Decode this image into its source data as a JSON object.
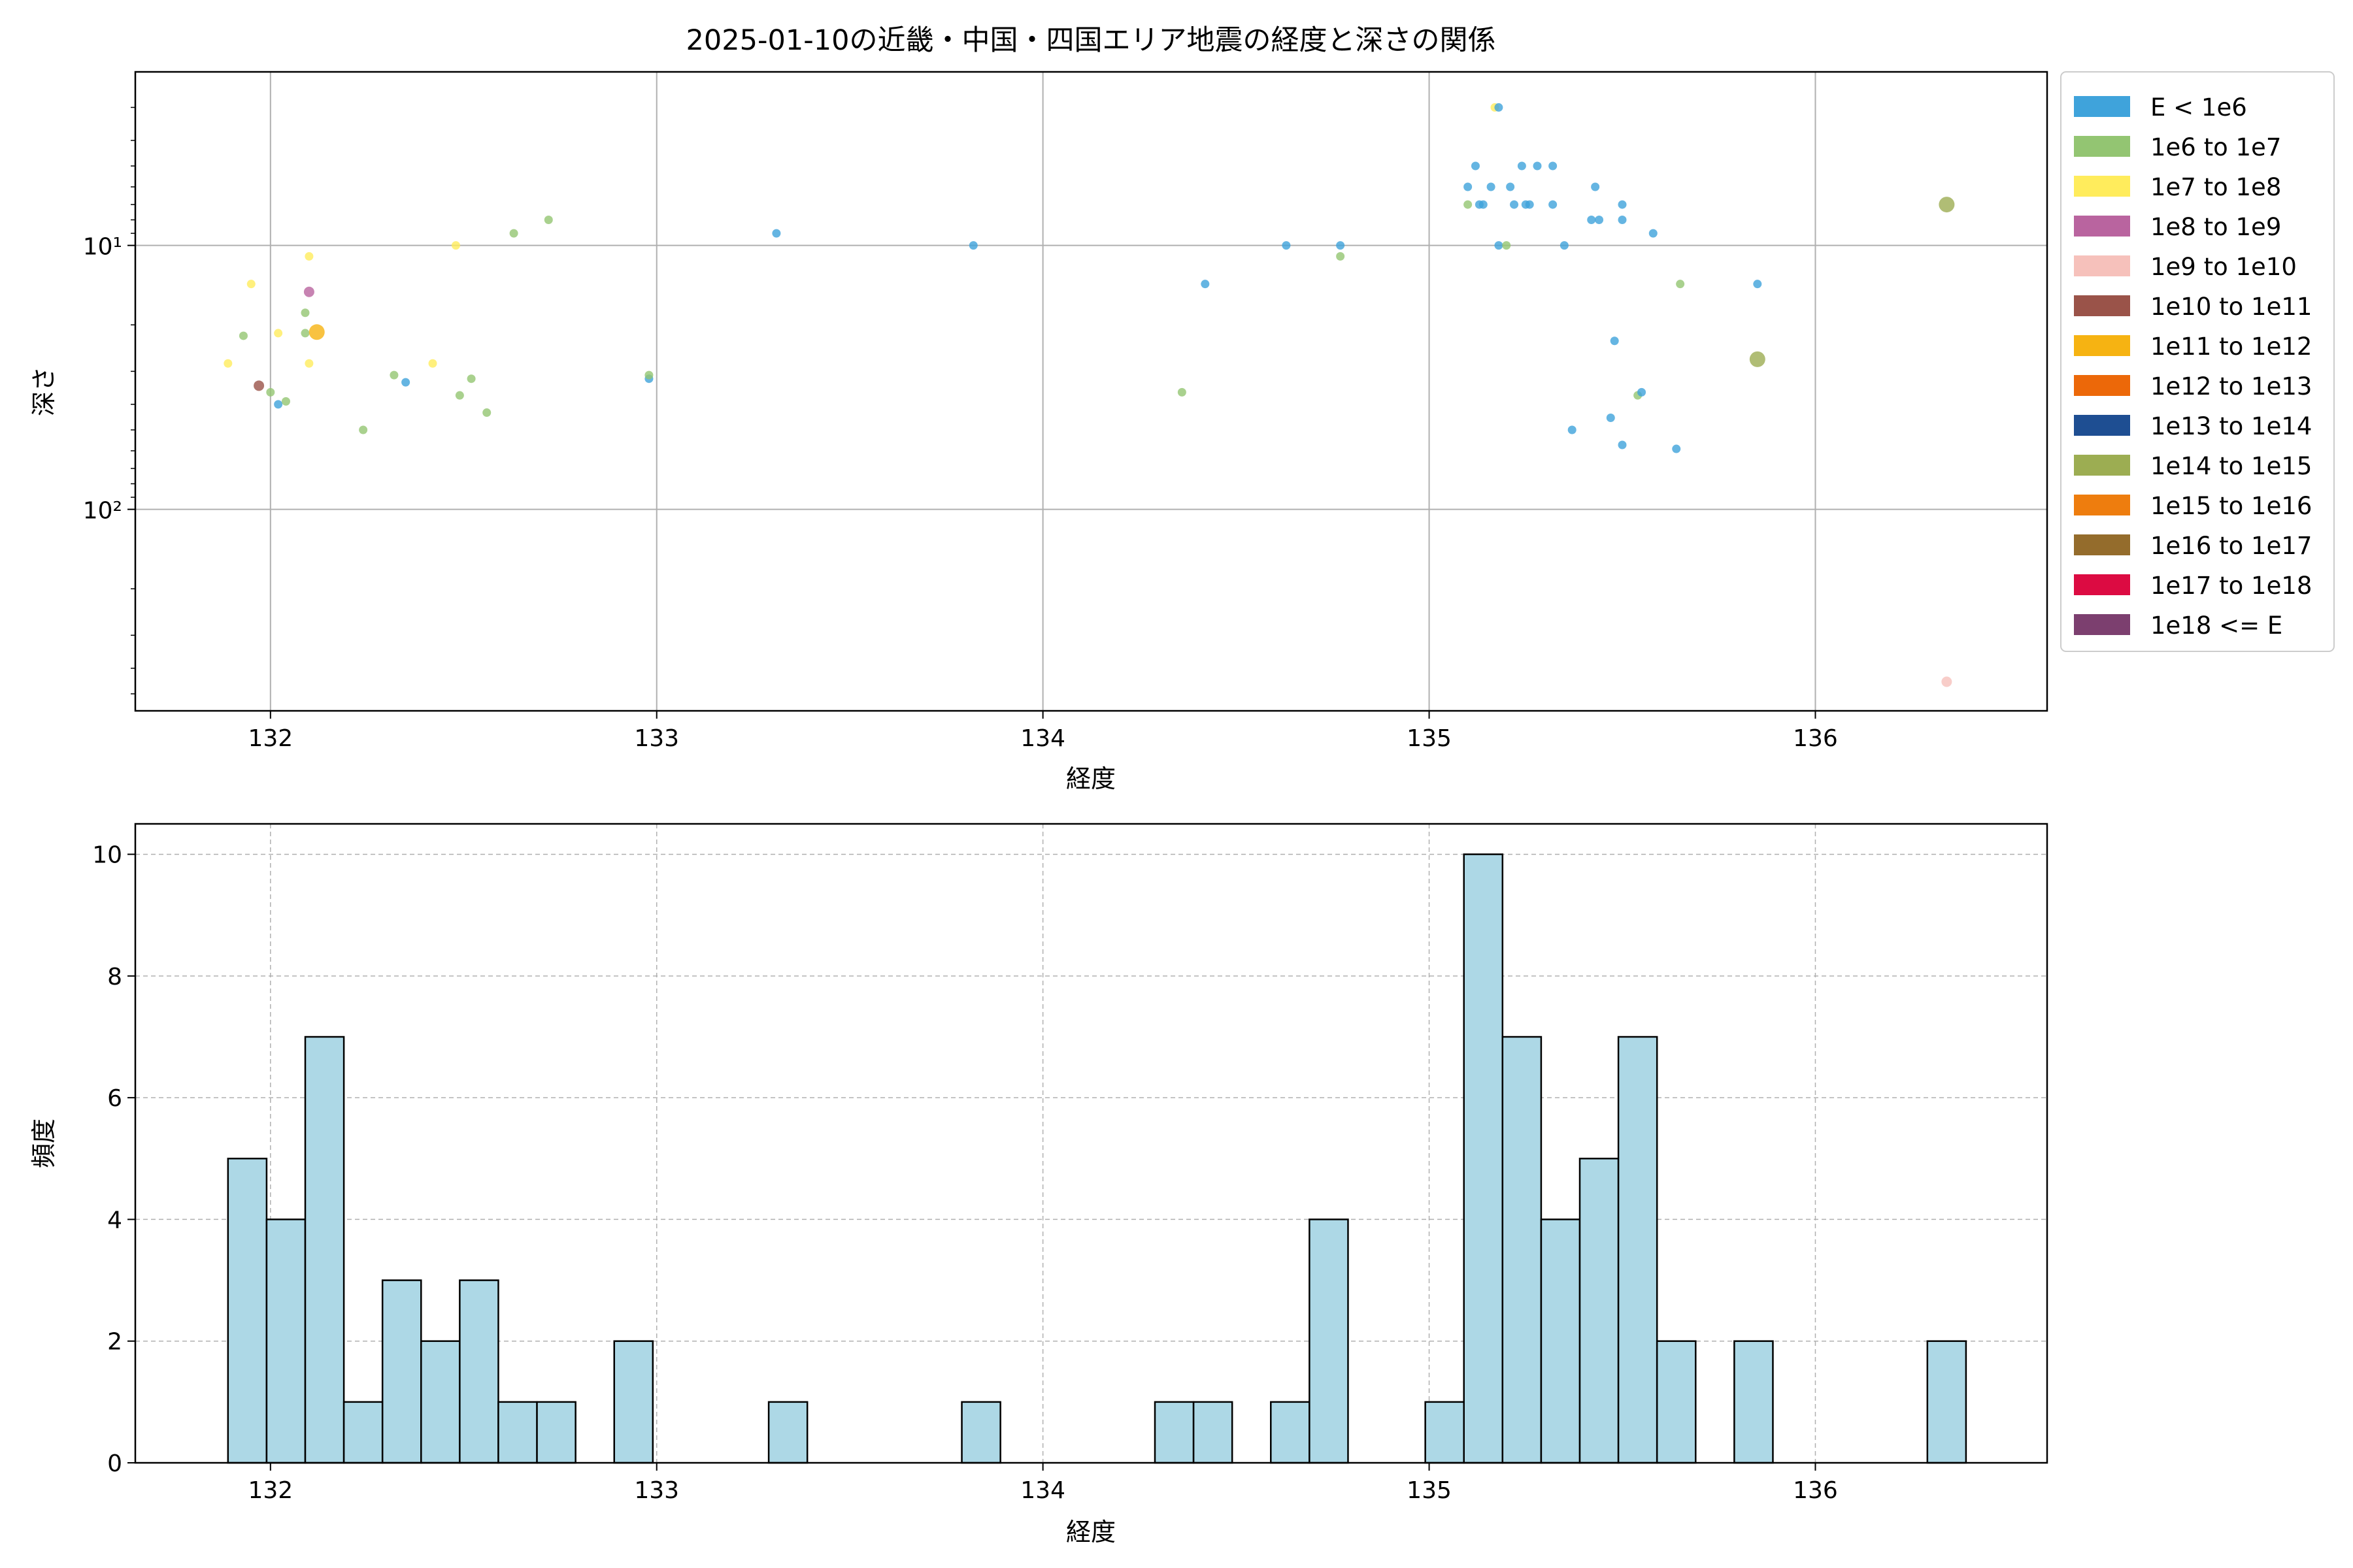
{
  "chart_data": [
    {
      "type": "scatter",
      "title": "2025-01-10の近畿・中国・四国エリア地震の経度と深さの関係",
      "xlabel": "経度",
      "ylabel": "深さ",
      "xlim": [
        131.65,
        136.6
      ],
      "ylim": [
        580,
        2.2
      ],
      "yscale": "log",
      "y_inverted": true,
      "xticks": [
        132,
        133,
        134,
        135,
        136
      ],
      "xtick_labels": [
        "132",
        "133",
        "134",
        "135",
        "136"
      ],
      "yticks": [
        10,
        100
      ],
      "ytick_labels": [
        "10¹",
        "10²"
      ],
      "grid": true,
      "legend_position": "outside-right",
      "legend": [
        {
          "label": "E < 1e6",
          "color": "#3fa3db"
        },
        {
          "label": "1e6 to 1e7",
          "color": "#93c572"
        },
        {
          "label": "1e7 to 1e8",
          "color": "#ffec5c"
        },
        {
          "label": "1e8 to 1e9",
          "color": "#b9649f"
        },
        {
          "label": "1e9 to 1e10",
          "color": "#f6c1bb"
        },
        {
          "label": "1e10 to 1e11",
          "color": "#9a5349"
        },
        {
          "label": "1e11 to 1e12",
          "color": "#f6b312"
        },
        {
          "label": "1e12 to 1e13",
          "color": "#ec6809"
        },
        {
          "label": "1e13 to 1e14",
          "color": "#1e4e92"
        },
        {
          "label": "1e14 to 1e15",
          "color": "#9cad52"
        },
        {
          "label": "1e15 to 1e16",
          "color": "#ee7d0e"
        },
        {
          "label": "1e16 to 1e17",
          "color": "#946c2c"
        },
        {
          "label": "1e17 to 1e18",
          "color": "#dc0b42"
        },
        {
          "label": "1e18 <= E",
          "color": "#7c3f6f"
        }
      ],
      "points": [
        {
          "x": 131.89,
          "y": 28,
          "c": 2
        },
        {
          "x": 131.93,
          "y": 22,
          "c": 1
        },
        {
          "x": 131.95,
          "y": 14,
          "c": 2
        },
        {
          "x": 131.97,
          "y": 34,
          "c": 5
        },
        {
          "x": 132.0,
          "y": 36,
          "c": 1
        },
        {
          "x": 132.02,
          "y": 40,
          "c": 0
        },
        {
          "x": 132.02,
          "y": 21.5,
          "c": 2
        },
        {
          "x": 132.04,
          "y": 39,
          "c": 1
        },
        {
          "x": 132.09,
          "y": 21.5,
          "c": 1
        },
        {
          "x": 132.09,
          "y": 18,
          "c": 1
        },
        {
          "x": 132.1,
          "y": 15,
          "c": 3
        },
        {
          "x": 132.1,
          "y": 11,
          "c": 2
        },
        {
          "x": 132.1,
          "y": 28,
          "c": 2
        },
        {
          "x": 132.12,
          "y": 21.3,
          "c": 6
        },
        {
          "x": 132.24,
          "y": 50,
          "c": 1
        },
        {
          "x": 132.32,
          "y": 31,
          "c": 1
        },
        {
          "x": 132.35,
          "y": 33,
          "c": 0
        },
        {
          "x": 132.42,
          "y": 28,
          "c": 2
        },
        {
          "x": 132.48,
          "y": 10,
          "c": 2
        },
        {
          "x": 132.49,
          "y": 37,
          "c": 1
        },
        {
          "x": 132.52,
          "y": 32,
          "c": 1
        },
        {
          "x": 132.56,
          "y": 43,
          "c": 1
        },
        {
          "x": 132.63,
          "y": 9,
          "c": 1
        },
        {
          "x": 132.72,
          "y": 8,
          "c": 1
        },
        {
          "x": 132.98,
          "y": 32,
          "c": 0
        },
        {
          "x": 132.98,
          "y": 31,
          "c": 1
        },
        {
          "x": 133.31,
          "y": 9,
          "c": 0
        },
        {
          "x": 133.82,
          "y": 10,
          "c": 0
        },
        {
          "x": 134.36,
          "y": 36,
          "c": 1
        },
        {
          "x": 134.42,
          "y": 14,
          "c": 0
        },
        {
          "x": 134.63,
          "y": 10,
          "c": 0
        },
        {
          "x": 134.77,
          "y": 10,
          "c": 0
        },
        {
          "x": 134.77,
          "y": 11,
          "c": 1
        },
        {
          "x": 135.1,
          "y": 6,
          "c": 0
        },
        {
          "x": 135.1,
          "y": 7,
          "c": 1
        },
        {
          "x": 135.12,
          "y": 5,
          "c": 0
        },
        {
          "x": 135.13,
          "y": 7,
          "c": 0
        },
        {
          "x": 135.14,
          "y": 7,
          "c": 0
        },
        {
          "x": 135.16,
          "y": 6,
          "c": 0
        },
        {
          "x": 135.17,
          "y": 3,
          "c": 2
        },
        {
          "x": 135.18,
          "y": 3,
          "c": 0
        },
        {
          "x": 135.18,
          "y": 10,
          "c": 0
        },
        {
          "x": 135.2,
          "y": 10,
          "c": 1
        },
        {
          "x": 135.21,
          "y": 6,
          "c": 0
        },
        {
          "x": 135.22,
          "y": 7,
          "c": 0
        },
        {
          "x": 135.24,
          "y": 5,
          "c": 0
        },
        {
          "x": 135.25,
          "y": 7,
          "c": 0
        },
        {
          "x": 135.26,
          "y": 7,
          "c": 0
        },
        {
          "x": 135.28,
          "y": 5,
          "c": 0
        },
        {
          "x": 135.32,
          "y": 5,
          "c": 0
        },
        {
          "x": 135.32,
          "y": 7,
          "c": 0
        },
        {
          "x": 135.35,
          "y": 10,
          "c": 0
        },
        {
          "x": 135.37,
          "y": 50,
          "c": 0
        },
        {
          "x": 135.42,
          "y": 8,
          "c": 0
        },
        {
          "x": 135.43,
          "y": 6,
          "c": 0
        },
        {
          "x": 135.44,
          "y": 8,
          "c": 0
        },
        {
          "x": 135.47,
          "y": 45,
          "c": 0
        },
        {
          "x": 135.48,
          "y": 23,
          "c": 0
        },
        {
          "x": 135.5,
          "y": 7,
          "c": 0
        },
        {
          "x": 135.5,
          "y": 8,
          "c": 0
        },
        {
          "x": 135.5,
          "y": 57,
          "c": 0
        },
        {
          "x": 135.54,
          "y": 37,
          "c": 1
        },
        {
          "x": 135.55,
          "y": 36,
          "c": 0
        },
        {
          "x": 135.58,
          "y": 9,
          "c": 0
        },
        {
          "x": 135.64,
          "y": 59,
          "c": 0
        },
        {
          "x": 135.65,
          "y": 14,
          "c": 1
        },
        {
          "x": 135.85,
          "y": 27,
          "c": 9
        },
        {
          "x": 135.85,
          "y": 14,
          "c": 0
        },
        {
          "x": 136.34,
          "y": 7,
          "c": 9
        },
        {
          "x": 136.34,
          "y": 450,
          "c": 4
        }
      ]
    },
    {
      "type": "bar",
      "xlabel": "経度",
      "ylabel": "頻度",
      "xlim": [
        131.65,
        136.6
      ],
      "ylim": [
        0,
        10.5
      ],
      "xticks": [
        132,
        133,
        134,
        135,
        136
      ],
      "xtick_labels": [
        "132",
        "133",
        "134",
        "135",
        "136"
      ],
      "yticks": [
        0,
        2,
        4,
        6,
        8,
        10
      ],
      "ytick_labels": [
        "0",
        "2",
        "4",
        "6",
        "8",
        "10"
      ],
      "grid": true,
      "bin_start": 131.89,
      "bin_width": 0.1,
      "color": "#add8e6",
      "values": [
        5,
        4,
        7,
        1,
        3,
        2,
        3,
        1,
        1,
        0,
        2,
        0,
        0,
        0,
        1,
        0,
        0,
        0,
        0,
        1,
        0,
        0,
        0,
        0,
        1,
        1,
        0,
        1,
        4,
        0,
        0,
        1,
        10,
        7,
        4,
        5,
        7,
        2,
        0,
        2,
        0,
        0,
        0,
        0,
        2
      ]
    }
  ]
}
